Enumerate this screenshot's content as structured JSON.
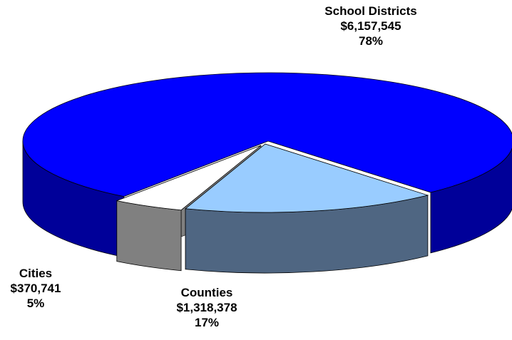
{
  "chart_data": {
    "type": "pie",
    "title": "",
    "three_d": true,
    "slices": [
      {
        "label": "School Districts",
        "amount": "$6,157,545",
        "value": 6157545,
        "percent": "78%",
        "color": "#0000ff",
        "side_color": "#000099",
        "exploded": false
      },
      {
        "label": "Counties",
        "amount": "$1,318,378",
        "value": 1318378,
        "percent": "17%",
        "color": "#99ccff",
        "side_color": "#4f6682",
        "exploded": true
      },
      {
        "label": "Cities",
        "amount": "$370,741",
        "value": 370741,
        "percent": "5%",
        "color": "#ffffff",
        "side_color": "#808080",
        "exploded": true
      }
    ]
  }
}
